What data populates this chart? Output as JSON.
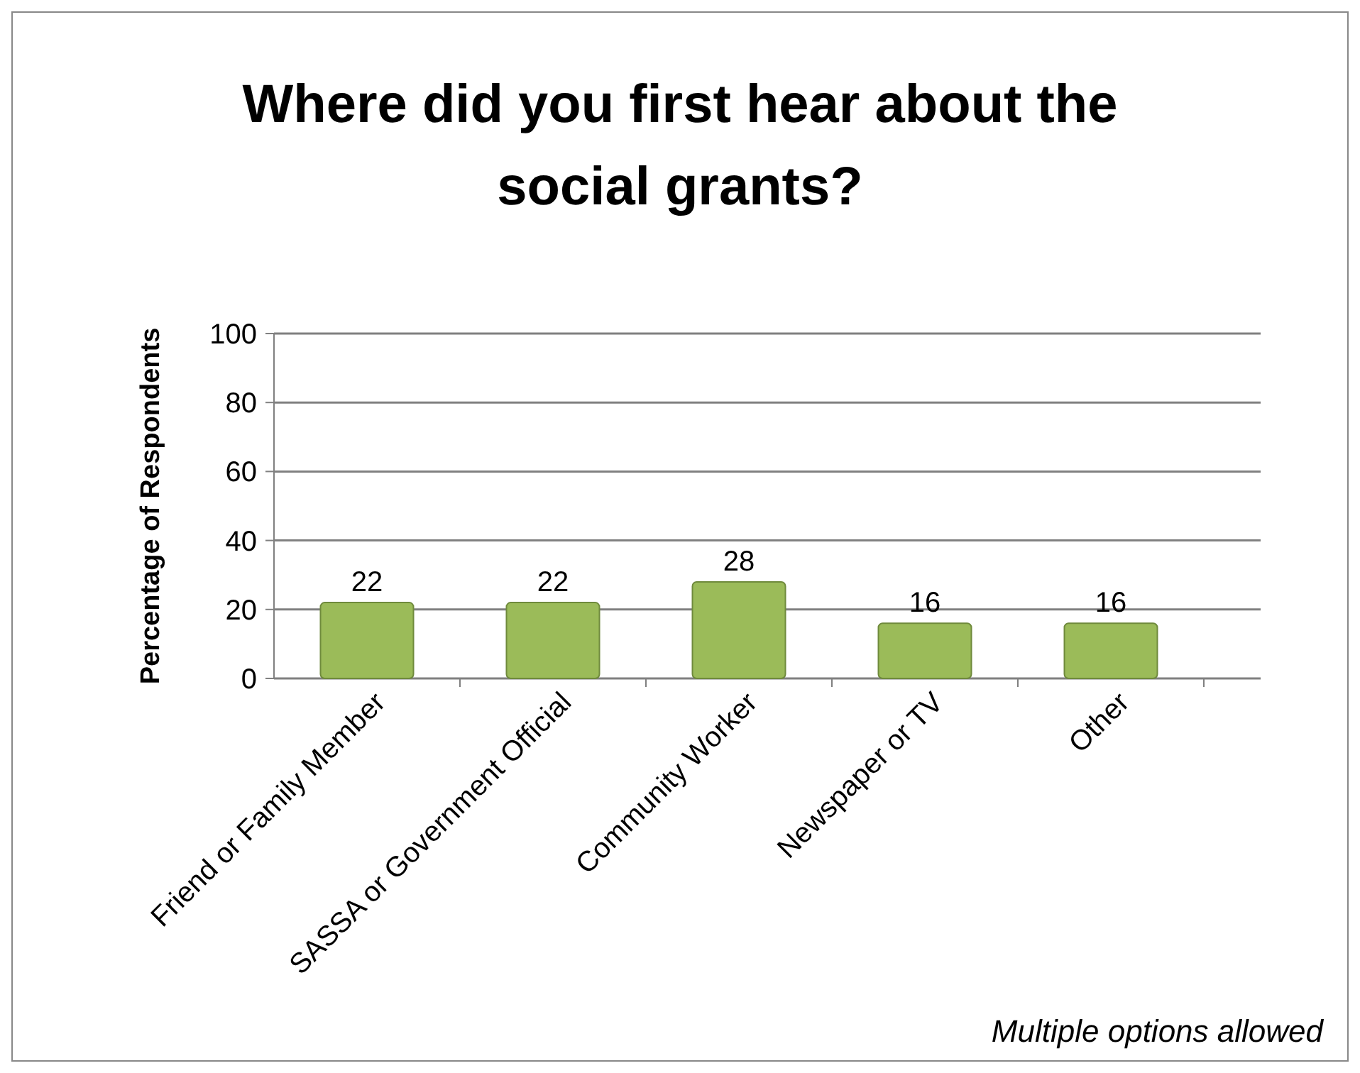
{
  "chart_data": {
    "type": "bar",
    "title": "Where did you first hear about the social grants?",
    "ylabel": "Percentage of Respondents",
    "categories": [
      "Friend or Family Member",
      "SASSA or Government Official",
      "Community Worker",
      "Newspaper or TV",
      "Other"
    ],
    "values": [
      22,
      22,
      28,
      16,
      16
    ],
    "color": "#9bbb59",
    "ylim": [
      0,
      100
    ],
    "yticks": [
      0,
      20,
      40,
      60,
      80,
      100
    ],
    "grid": "y",
    "data_labels": true,
    "annotations": [
      "Multiple options allowed"
    ]
  }
}
